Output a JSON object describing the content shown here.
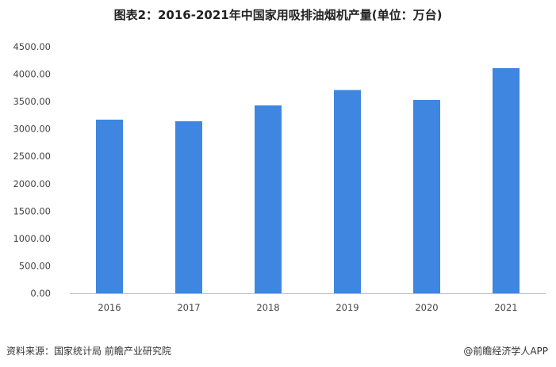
{
  "title": "图表2：2016-2021年中国家用吸排油烟机产量(单位：万台)",
  "source": "资料来源：国家统计局 前瞻产业研究院",
  "credit": "@前瞻经济学人APP",
  "colors": {
    "bar": "#3E86E0",
    "axis": "#BFBFBF"
  },
  "chart_data": {
    "type": "bar",
    "title": "图表2：2016-2021年中国家用吸排油烟机产量(单位：万台)",
    "xlabel": "",
    "ylabel": "",
    "categories": [
      "2016",
      "2017",
      "2018",
      "2019",
      "2020",
      "2021"
    ],
    "values": [
      3170,
      3140,
      3430,
      3710,
      3530,
      4110
    ],
    "ylim": [
      0,
      4500
    ],
    "yticks": [
      0,
      500,
      1000,
      1500,
      2000,
      2500,
      3000,
      3500,
      4000,
      4500
    ],
    "ytick_labels": [
      "0.00",
      "500.00",
      "1000.00",
      "1500.00",
      "2000.00",
      "2500.00",
      "3000.00",
      "3500.00",
      "4000.00",
      "4500.00"
    ],
    "grid": false,
    "legend": "none"
  }
}
